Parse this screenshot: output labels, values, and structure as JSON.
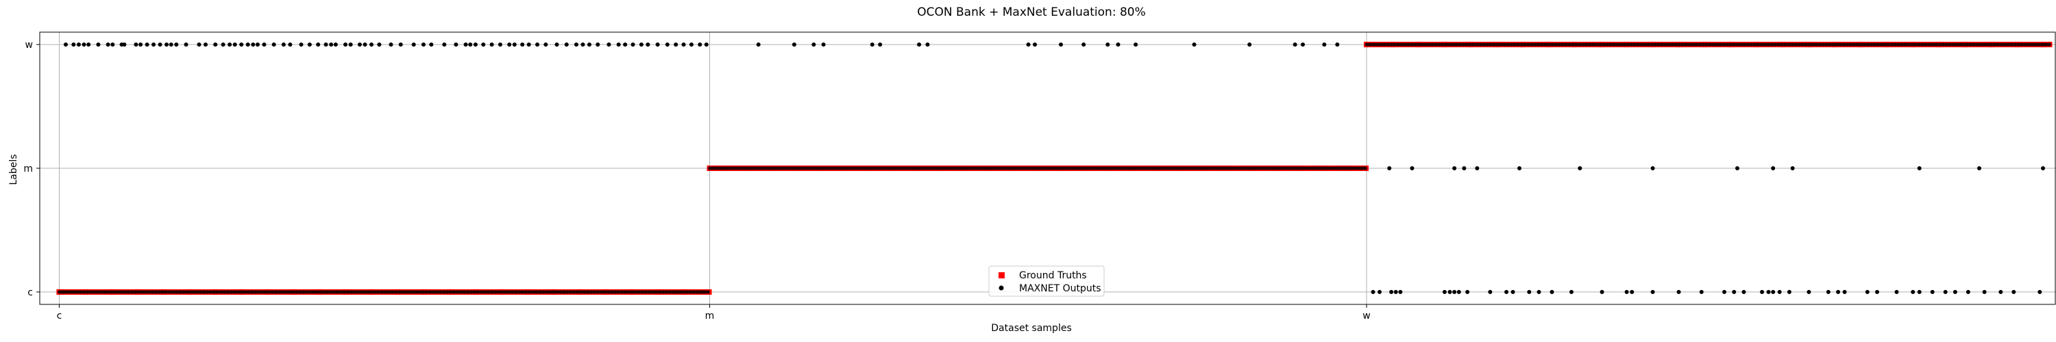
{
  "chart_data": {
    "type": "scatter",
    "title": "OCON Bank + MaxNet Evaluation: 80%",
    "xlabel": "Dataset samples",
    "ylabel": "Labels",
    "x_ticks": [
      {
        "value": 0,
        "label": "c"
      },
      {
        "value": 1000,
        "label": "m"
      },
      {
        "value": 2010,
        "label": "w"
      }
    ],
    "y_ticks": [
      {
        "value": 0,
        "label": "c"
      },
      {
        "value": 1,
        "label": "m"
      },
      {
        "value": 2,
        "label": "w"
      }
    ],
    "xlim": [
      -30,
      3070
    ],
    "ylim": [
      -0.1,
      2.1
    ],
    "grid": true,
    "legend_position": "bottom-center",
    "series": [
      {
        "name": "Ground Truths",
        "marker": "square",
        "color": "#ff0000",
        "segments": [
          {
            "x_start": 0,
            "x_end": 999,
            "y": 0
          },
          {
            "x_start": 1000,
            "x_end": 2009,
            "y": 1
          },
          {
            "x_start": 2010,
            "x_end": 3060,
            "y": 2
          }
        ]
      },
      {
        "name": "MAXNET Outputs",
        "marker": "circle",
        "color": "#000000",
        "points": [
          {
            "x": 10,
            "y": 2
          },
          {
            "x": 22,
            "y": 2
          },
          {
            "x": 30,
            "y": 2
          },
          {
            "x": 38,
            "y": 2
          },
          {
            "x": 45,
            "y": 2
          },
          {
            "x": 60,
            "y": 2
          },
          {
            "x": 75,
            "y": 2
          },
          {
            "x": 82,
            "y": 2
          },
          {
            "x": 96,
            "y": 2
          },
          {
            "x": 100,
            "y": 2
          },
          {
            "x": 118,
            "y": 2
          },
          {
            "x": 125,
            "y": 2
          },
          {
            "x": 135,
            "y": 2
          },
          {
            "x": 145,
            "y": 2
          },
          {
            "x": 155,
            "y": 2
          },
          {
            "x": 165,
            "y": 2
          },
          {
            "x": 172,
            "y": 2
          },
          {
            "x": 180,
            "y": 2
          },
          {
            "x": 195,
            "y": 2
          },
          {
            "x": 215,
            "y": 2
          },
          {
            "x": 225,
            "y": 2
          },
          {
            "x": 240,
            "y": 2
          },
          {
            "x": 252,
            "y": 2
          },
          {
            "x": 262,
            "y": 2
          },
          {
            "x": 270,
            "y": 2
          },
          {
            "x": 280,
            "y": 2
          },
          {
            "x": 290,
            "y": 2
          },
          {
            "x": 298,
            "y": 2
          },
          {
            "x": 305,
            "y": 2
          },
          {
            "x": 315,
            "y": 2
          },
          {
            "x": 330,
            "y": 2
          },
          {
            "x": 345,
            "y": 2
          },
          {
            "x": 355,
            "y": 2
          },
          {
            "x": 372,
            "y": 2
          },
          {
            "x": 385,
            "y": 2
          },
          {
            "x": 398,
            "y": 2
          },
          {
            "x": 410,
            "y": 2
          },
          {
            "x": 418,
            "y": 2
          },
          {
            "x": 425,
            "y": 2
          },
          {
            "x": 440,
            "y": 2
          },
          {
            "x": 448,
            "y": 2
          },
          {
            "x": 462,
            "y": 2
          },
          {
            "x": 470,
            "y": 2
          },
          {
            "x": 480,
            "y": 2
          },
          {
            "x": 492,
            "y": 2
          },
          {
            "x": 510,
            "y": 2
          },
          {
            "x": 525,
            "y": 2
          },
          {
            "x": 545,
            "y": 2
          },
          {
            "x": 560,
            "y": 2
          },
          {
            "x": 572,
            "y": 2
          },
          {
            "x": 592,
            "y": 2
          },
          {
            "x": 610,
            "y": 2
          },
          {
            "x": 625,
            "y": 2
          },
          {
            "x": 632,
            "y": 2
          },
          {
            "x": 640,
            "y": 2
          },
          {
            "x": 652,
            "y": 2
          },
          {
            "x": 665,
            "y": 2
          },
          {
            "x": 678,
            "y": 2
          },
          {
            "x": 692,
            "y": 2
          },
          {
            "x": 700,
            "y": 2
          },
          {
            "x": 712,
            "y": 2
          },
          {
            "x": 722,
            "y": 2
          },
          {
            "x": 735,
            "y": 2
          },
          {
            "x": 748,
            "y": 2
          },
          {
            "x": 765,
            "y": 2
          },
          {
            "x": 780,
            "y": 2
          },
          {
            "x": 795,
            "y": 2
          },
          {
            "x": 805,
            "y": 2
          },
          {
            "x": 815,
            "y": 2
          },
          {
            "x": 828,
            "y": 2
          },
          {
            "x": 845,
            "y": 2
          },
          {
            "x": 860,
            "y": 2
          },
          {
            "x": 870,
            "y": 2
          },
          {
            "x": 882,
            "y": 2
          },
          {
            "x": 895,
            "y": 2
          },
          {
            "x": 905,
            "y": 2
          },
          {
            "x": 920,
            "y": 2
          },
          {
            "x": 935,
            "y": 2
          },
          {
            "x": 948,
            "y": 2
          },
          {
            "x": 960,
            "y": 2
          },
          {
            "x": 972,
            "y": 2
          },
          {
            "x": 985,
            "y": 2
          },
          {
            "x": 995,
            "y": 2
          },
          {
            "x": 1075,
            "y": 2
          },
          {
            "x": 1130,
            "y": 2
          },
          {
            "x": 1160,
            "y": 2
          },
          {
            "x": 1175,
            "y": 2
          },
          {
            "x": 1250,
            "y": 2
          },
          {
            "x": 1262,
            "y": 2
          },
          {
            "x": 1322,
            "y": 2
          },
          {
            "x": 1335,
            "y": 2
          },
          {
            "x": 1490,
            "y": 2
          },
          {
            "x": 1500,
            "y": 2
          },
          {
            "x": 1540,
            "y": 2
          },
          {
            "x": 1575,
            "y": 2
          },
          {
            "x": 1612,
            "y": 2
          },
          {
            "x": 1628,
            "y": 2
          },
          {
            "x": 1655,
            "y": 2
          },
          {
            "x": 1745,
            "y": 2
          },
          {
            "x": 1830,
            "y": 2
          },
          {
            "x": 1900,
            "y": 2
          },
          {
            "x": 1912,
            "y": 2
          },
          {
            "x": 1945,
            "y": 2
          },
          {
            "x": 1965,
            "y": 2
          },
          {
            "x": 2045,
            "y": 1
          },
          {
            "x": 2080,
            "y": 1
          },
          {
            "x": 2145,
            "y": 1
          },
          {
            "x": 2160,
            "y": 1
          },
          {
            "x": 2180,
            "y": 1
          },
          {
            "x": 2245,
            "y": 1
          },
          {
            "x": 2338,
            "y": 1
          },
          {
            "x": 2450,
            "y": 1
          },
          {
            "x": 2580,
            "y": 1
          },
          {
            "x": 2635,
            "y": 1
          },
          {
            "x": 2665,
            "y": 1
          },
          {
            "x": 2860,
            "y": 1
          },
          {
            "x": 2952,
            "y": 1
          },
          {
            "x": 3050,
            "y": 1
          },
          {
            "x": 2020,
            "y": 0
          },
          {
            "x": 2030,
            "y": 0
          },
          {
            "x": 2048,
            "y": 0
          },
          {
            "x": 2055,
            "y": 0
          },
          {
            "x": 2062,
            "y": 0
          },
          {
            "x": 2130,
            "y": 0
          },
          {
            "x": 2138,
            "y": 0
          },
          {
            "x": 2145,
            "y": 0
          },
          {
            "x": 2152,
            "y": 0
          },
          {
            "x": 2165,
            "y": 0
          },
          {
            "x": 2200,
            "y": 0
          },
          {
            "x": 2225,
            "y": 0
          },
          {
            "x": 2235,
            "y": 0
          },
          {
            "x": 2260,
            "y": 0
          },
          {
            "x": 2275,
            "y": 0
          },
          {
            "x": 2295,
            "y": 0
          },
          {
            "x": 2325,
            "y": 0
          },
          {
            "x": 2372,
            "y": 0
          },
          {
            "x": 2410,
            "y": 0
          },
          {
            "x": 2418,
            "y": 0
          },
          {
            "x": 2450,
            "y": 0
          },
          {
            "x": 2490,
            "y": 0
          },
          {
            "x": 2525,
            "y": 0
          },
          {
            "x": 2560,
            "y": 0
          },
          {
            "x": 2575,
            "y": 0
          },
          {
            "x": 2590,
            "y": 0
          },
          {
            "x": 2618,
            "y": 0
          },
          {
            "x": 2628,
            "y": 0
          },
          {
            "x": 2635,
            "y": 0
          },
          {
            "x": 2645,
            "y": 0
          },
          {
            "x": 2660,
            "y": 0
          },
          {
            "x": 2690,
            "y": 0
          },
          {
            "x": 2720,
            "y": 0
          },
          {
            "x": 2735,
            "y": 0
          },
          {
            "x": 2745,
            "y": 0
          },
          {
            "x": 2780,
            "y": 0
          },
          {
            "x": 2795,
            "y": 0
          },
          {
            "x": 2825,
            "y": 0
          },
          {
            "x": 2850,
            "y": 0
          },
          {
            "x": 2860,
            "y": 0
          },
          {
            "x": 2880,
            "y": 0
          },
          {
            "x": 2900,
            "y": 0
          },
          {
            "x": 2915,
            "y": 0
          },
          {
            "x": 2935,
            "y": 0
          },
          {
            "x": 2960,
            "y": 0
          },
          {
            "x": 2985,
            "y": 0
          },
          {
            "x": 3005,
            "y": 0
          },
          {
            "x": 3045,
            "y": 0
          }
        ]
      }
    ]
  }
}
